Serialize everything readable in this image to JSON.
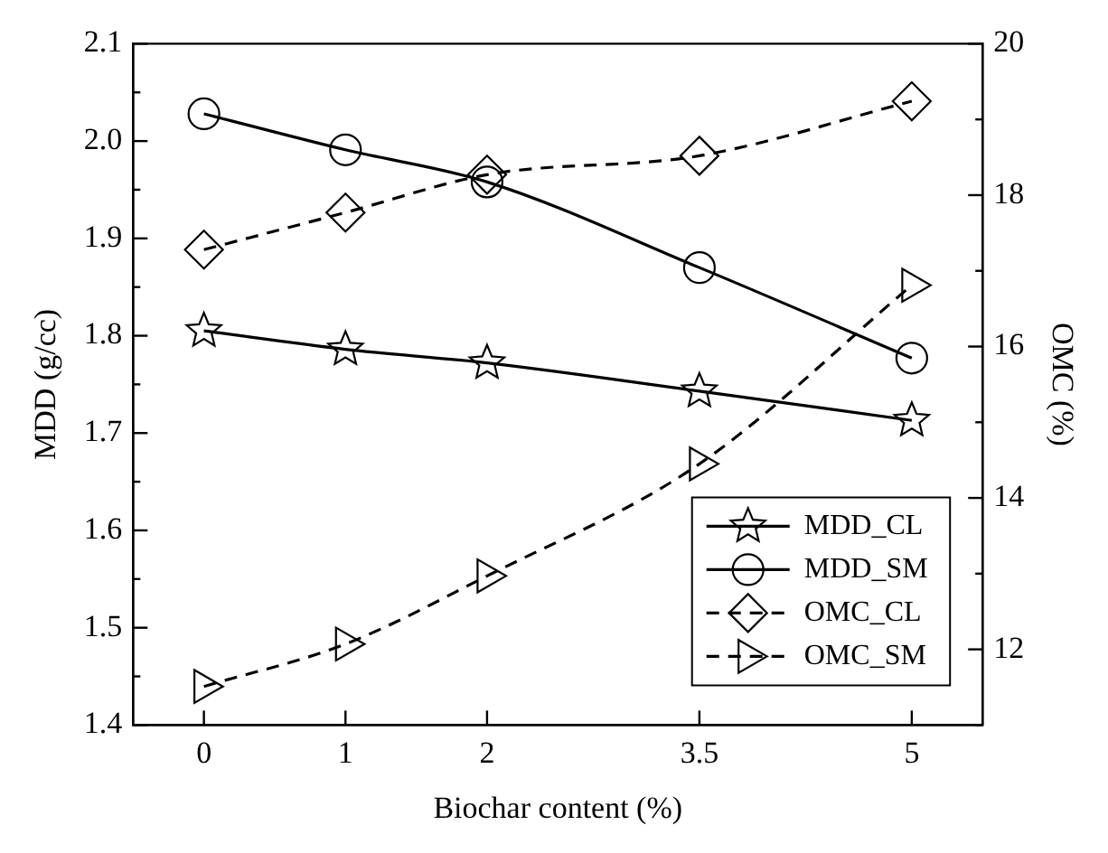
{
  "chart_data": {
    "type": "line",
    "xlabel": "Biochar content (%)",
    "ylabel": "MDD (g/cc)",
    "y2label": "OMC (%)",
    "x": [
      0,
      1,
      2,
      3.5,
      5
    ],
    "xlim": [
      -0.5,
      5.5
    ],
    "xticks": [
      0,
      1,
      2,
      3.5,
      5
    ],
    "ylim": [
      1.4,
      2.1
    ],
    "yticks": [
      {
        "value": 1.4,
        "label": "1.4"
      },
      {
        "value": 1.45,
        "label": null
      },
      {
        "value": 1.5,
        "label": "1.5"
      },
      {
        "value": 1.55,
        "label": null
      },
      {
        "value": 1.6,
        "label": "1.6"
      },
      {
        "value": 1.65,
        "label": null
      },
      {
        "value": 1.7,
        "label": "1.7"
      },
      {
        "value": 1.75,
        "label": null
      },
      {
        "value": 1.8,
        "label": "1.8"
      },
      {
        "value": 1.85,
        "label": null
      },
      {
        "value": 1.9,
        "label": "1.9"
      },
      {
        "value": 1.95,
        "label": null
      },
      {
        "value": 2.0,
        "label": "2.0"
      },
      {
        "value": 2.05,
        "label": null
      },
      {
        "value": 2.1,
        "label": "2.1"
      }
    ],
    "y2lim": [
      11,
      20
    ],
    "y2ticks": [
      {
        "value": 11,
        "label": null
      },
      12,
      {
        "value": 13,
        "label": null
      },
      14,
      {
        "value": 15,
        "label": null
      },
      16,
      {
        "value": 17,
        "label": null
      },
      18,
      {
        "value": 19,
        "label": null
      },
      20
    ],
    "grid": false,
    "legend": "bottom right",
    "series": [
      {
        "name": "MDD_CL",
        "color": "#000000",
        "marker": "star",
        "line_style": "solid",
        "values": [
          1.805,
          1.786,
          1.772,
          1.743,
          1.713
        ]
      },
      {
        "name": "MDD_SM",
        "color": "#000000",
        "marker": "circle",
        "line_style": "solid",
        "values": [
          2.028,
          1.991,
          1.958,
          1.87,
          1.777
        ]
      },
      {
        "name": "OMC_CL",
        "color": "#000000",
        "marker": "diamond",
        "line_style": "dashed",
        "axis": "y2",
        "values": [
          17.28,
          17.77,
          18.27,
          18.52,
          19.24
        ]
      },
      {
        "name": "OMC_SM",
        "color": "#000000",
        "marker": "triangle",
        "line_style": "dashed",
        "axis": "y2",
        "values": [
          11.51,
          12.07,
          12.97,
          14.45,
          16.81
        ]
      }
    ]
  }
}
